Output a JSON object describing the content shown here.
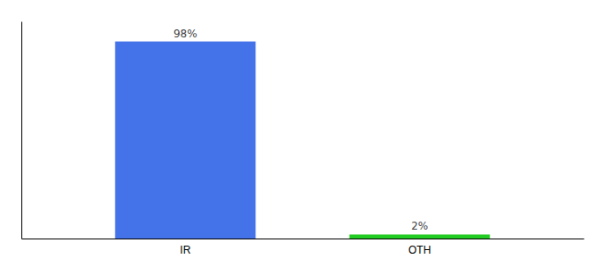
{
  "chart_data": {
    "type": "bar",
    "categories": [
      "IR",
      "OTH"
    ],
    "values": [
      98,
      2
    ],
    "value_labels": [
      "98%",
      "2%"
    ],
    "colors": [
      "#4472e8",
      "#22cc22"
    ],
    "ylim": [
      0,
      108
    ],
    "data_labels": true,
    "tick_labels": "x",
    "grid": false
  }
}
